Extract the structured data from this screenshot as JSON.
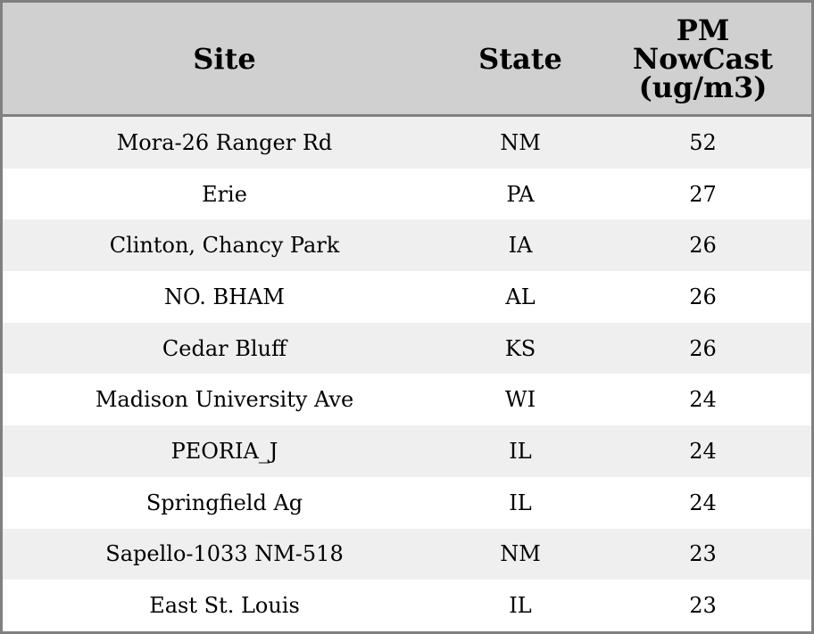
{
  "chart_data": {
    "type": "table",
    "columns": [
      "Site",
      "State",
      "PM NowCast (ug/m3)"
    ],
    "header_lines": [
      [
        "Site"
      ],
      [
        "State"
      ],
      [
        "PM",
        "NowCast",
        "(ug/m3)"
      ]
    ],
    "rows": [
      [
        "Mora-26 Ranger Rd",
        "NM",
        "52"
      ],
      [
        "Erie",
        "PA",
        "27"
      ],
      [
        "Clinton, Chancy Park",
        "IA",
        "26"
      ],
      [
        "NO. BHAM",
        "AL",
        "26"
      ],
      [
        "Cedar Bluff",
        "KS",
        "26"
      ],
      [
        "Madison University Ave",
        "WI",
        "24"
      ],
      [
        "PEORIA_J",
        "IL",
        "24"
      ],
      [
        "Springfield Ag",
        "IL",
        "24"
      ],
      [
        "Sapello-1033 NM-518",
        "NM",
        "23"
      ],
      [
        "East St. Louis",
        "IL",
        "23"
      ]
    ],
    "colors": {
      "header_bg": "#d0d0d0",
      "stripe_bg": "#efefef",
      "border": "#808080"
    }
  }
}
